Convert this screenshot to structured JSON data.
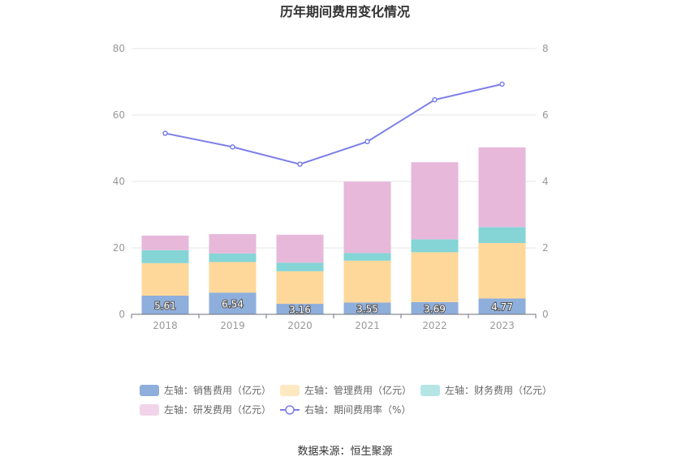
{
  "chart_data": {
    "type": "bar",
    "title": "历年期间费用变化情况",
    "categories": [
      "2018",
      "2019",
      "2020",
      "2021",
      "2022",
      "2023"
    ],
    "left_axis": {
      "ticks": [
        "0",
        "20",
        "40",
        "60",
        "80"
      ],
      "ylim": [
        0,
        80
      ]
    },
    "right_axis": {
      "ticks": [
        "0",
        "2",
        "4",
        "6",
        "8"
      ],
      "ylim": [
        0,
        8
      ]
    },
    "series": [
      {
        "name": "左轴：销售费用（亿元）",
        "type": "bar",
        "axis": "left",
        "color": "#8eaedc",
        "values": [
          5.61,
          6.54,
          3.16,
          3.55,
          3.69,
          4.77
        ],
        "labels": [
          "5.61",
          "6.54",
          "3.16",
          "3.55",
          "3.69",
          "4.77"
        ]
      },
      {
        "name": "左轴：管理费用（亿元）",
        "type": "bar",
        "axis": "left",
        "color": "#fdd89a",
        "values": [
          9.8,
          9.2,
          9.8,
          12.6,
          15.0,
          16.7
        ]
      },
      {
        "name": "左轴：财务费用（亿元）",
        "type": "bar",
        "axis": "left",
        "color": "#85d4d6",
        "values": [
          3.9,
          2.6,
          2.6,
          2.3,
          3.9,
          4.8
        ]
      },
      {
        "name": "左轴：研发费用（亿元）",
        "type": "bar",
        "axis": "left",
        "color": "#e7b8da",
        "values": [
          4.4,
          5.8,
          8.4,
          21.5,
          23.2,
          24.0
        ]
      },
      {
        "name": "右轴：期间费用率（%）",
        "type": "line",
        "axis": "right",
        "color": "#7b7fe8",
        "values": [
          5.45,
          5.04,
          4.52,
          5.2,
          6.46,
          6.93
        ]
      }
    ],
    "legend": {
      "position": "bottom"
    },
    "grid": true
  },
  "source_label": "数据来源：恒生聚源"
}
